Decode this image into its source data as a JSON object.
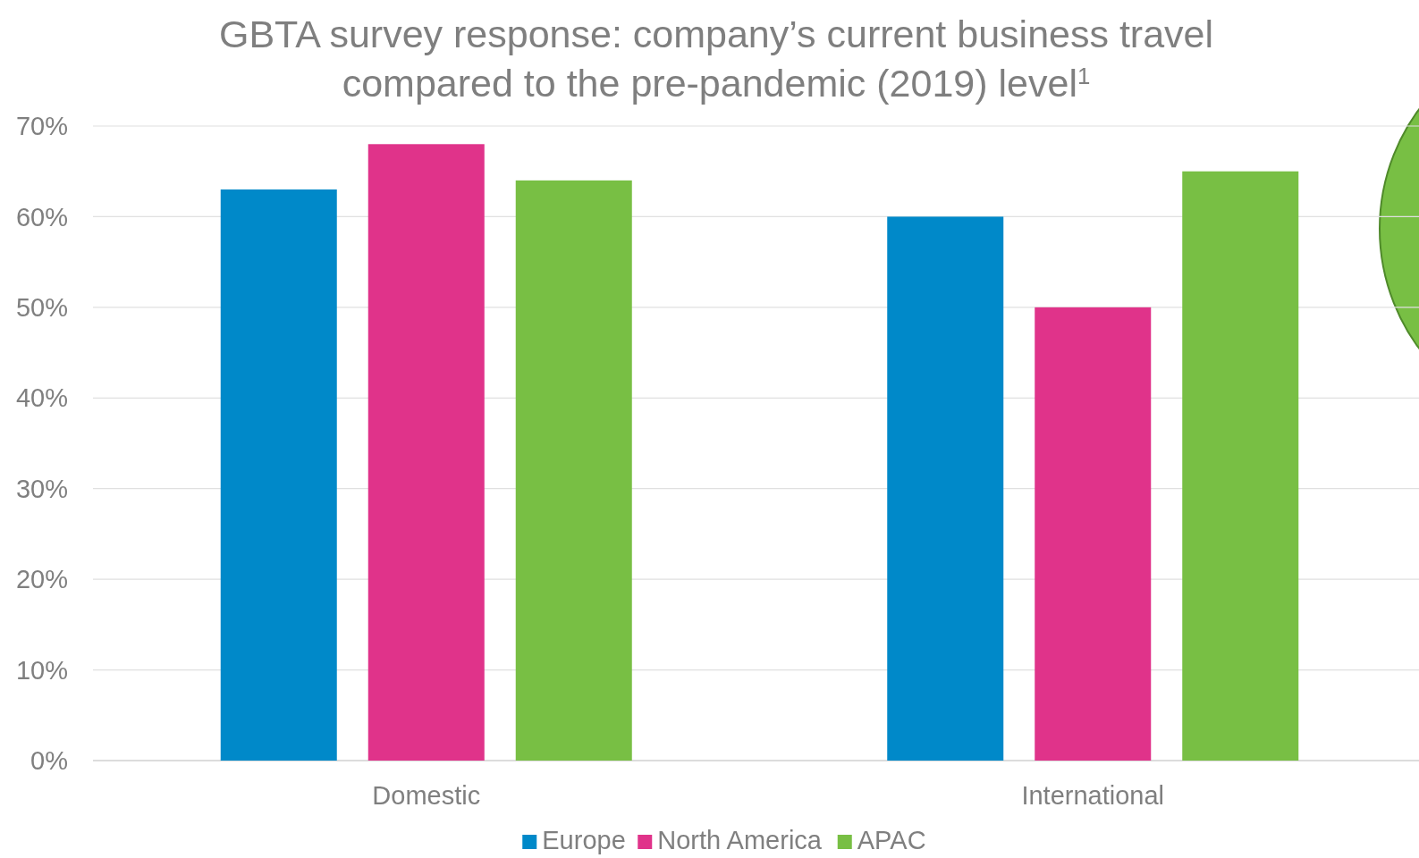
{
  "chart_data": {
    "type": "bar",
    "title": "GBTA survey response: company’s current business travel compared to the pre-pandemic (2019) level$^{1}$",
    "categories": [
      "Domestic",
      "International"
    ],
    "series": [
      {
        "name": "Europe",
        "color": "#0089c9",
        "values": [
          63,
          60
        ]
      },
      {
        "name": "North America",
        "color": "#e0338a",
        "values": [
          68,
          50
        ]
      },
      {
        "name": "APAC",
        "color": "#78bf44",
        "values": [
          64,
          65
        ]
      }
    ],
    "ylim": [
      0,
      70
    ],
    "yticks": [
      {
        "value": 0,
        "label": "0%"
      },
      {
        "value": 10,
        "label": "10%"
      },
      {
        "value": 20,
        "label": "20%"
      },
      {
        "value": 30,
        "label": "30%"
      },
      {
        "value": 40,
        "label": "40%"
      },
      {
        "value": 50,
        "label": "50%"
      },
      {
        "value": 60,
        "label": "60%"
      },
      {
        "value": 70,
        "label": "70%"
      }
    ],
    "grid": "y",
    "legend": "bottom"
  }
}
